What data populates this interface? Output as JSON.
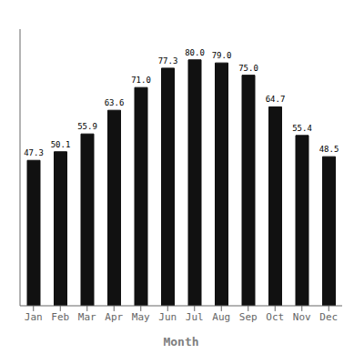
{
  "chart_data": {
    "type": "bar",
    "categories": [
      "Jan",
      "Feb",
      "Mar",
      "Apr",
      "May",
      "Jun",
      "Jul",
      "Aug",
      "Sep",
      "Oct",
      "Nov",
      "Dec"
    ],
    "values": [
      47.3,
      50.1,
      55.9,
      63.6,
      71.0,
      77.3,
      80.0,
      79.0,
      75.0,
      64.7,
      55.4,
      48.5
    ],
    "value_labels": [
      "47.3",
      "50.1",
      "55.9",
      "63.6",
      "71.0",
      "77.3",
      "80.0",
      "79.0",
      "75.0",
      "64.7",
      "55.4",
      "48.5"
    ],
    "color": "#111111",
    "xlabel": "Month",
    "ylim": [
      0,
      90
    ],
    "data_labels": true,
    "tick_labels": "x",
    "grid": false
  }
}
